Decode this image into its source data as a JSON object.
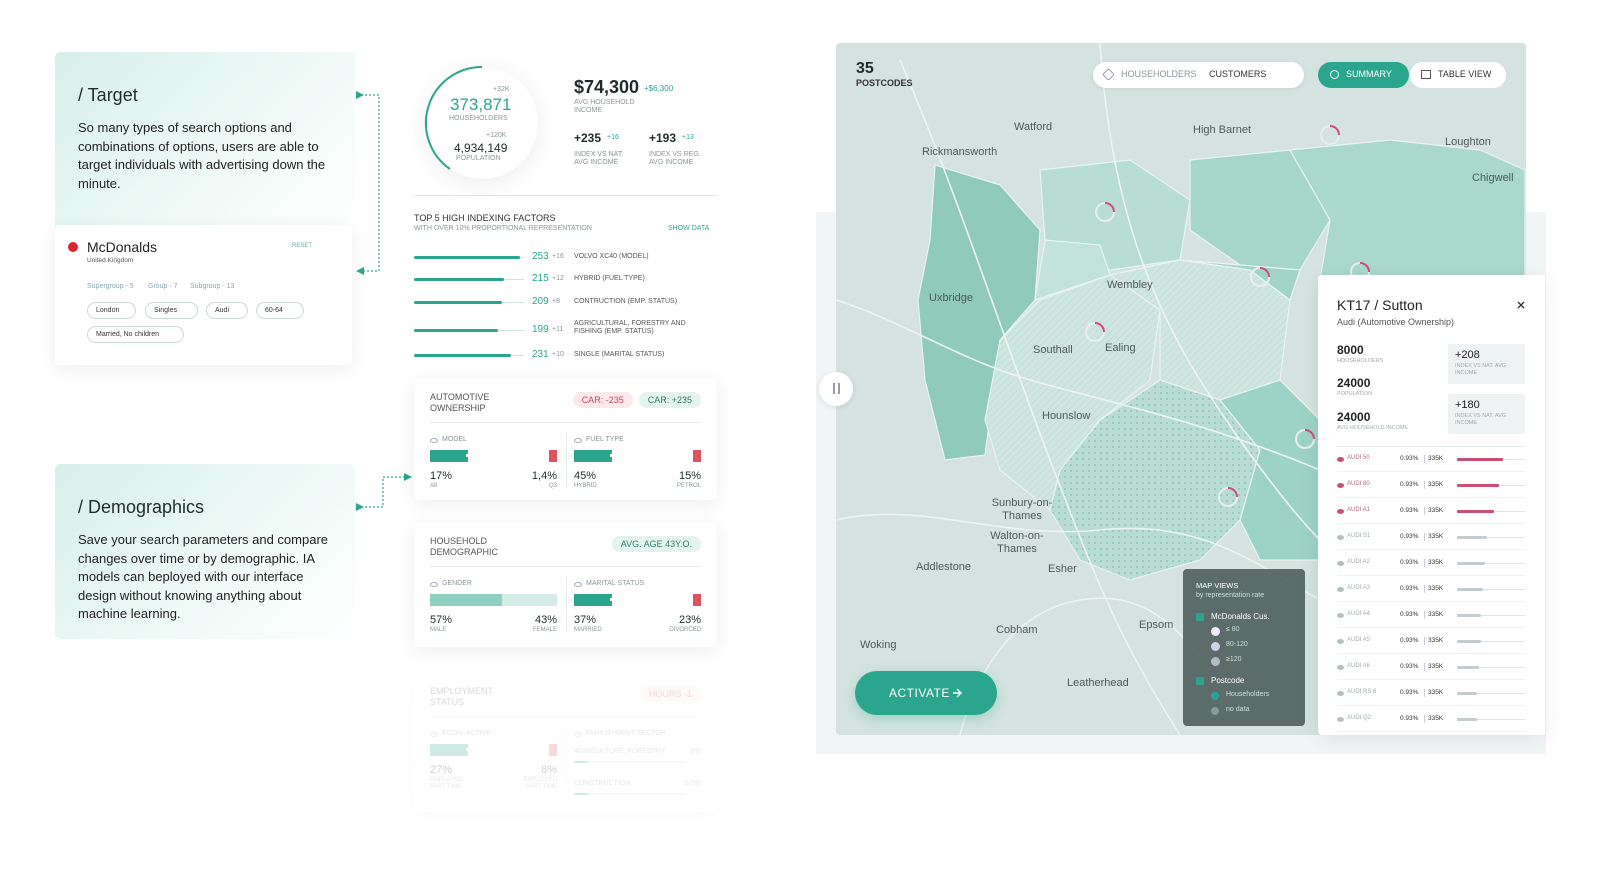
{
  "target": {
    "title": "/ Target",
    "text": "So many types of search options and combinations of options, users are able to target individuals with advertising down the minute."
  },
  "brand": {
    "name": "McDonalds",
    "country": "United Kingdom",
    "reset": "RESET",
    "groups": [
      "Supergroup - 5",
      "Group - 7",
      "Subgroup - 13"
    ],
    "chips": [
      "London",
      "Singles",
      "Audi",
      "60-64",
      "Married, No children"
    ]
  },
  "demographics": {
    "title": "/ Demographics",
    "text": "Save your search parameters and compare changes over time or by demographic. IA models can beployed with our interface design without knowing anything about machine learning."
  },
  "summary": {
    "households": {
      "value": "373,871",
      "delta": "+32K",
      "label": "HOUSEHOLDERS"
    },
    "population": {
      "value": "4,934,149",
      "delta": "+120K",
      "label": "POPULATION"
    },
    "income": {
      "value": "$74,300",
      "delta": "+$6,300",
      "label": "AVG HOUSEHOLD INCOME"
    },
    "indexes": [
      {
        "value": "+235",
        "delta": "+16",
        "label": "INDEX VS NAT. AVG INCOME"
      },
      {
        "value": "+193",
        "delta": "+13",
        "label": "INDEX VS REG. AVG INCOME"
      }
    ]
  },
  "factors": {
    "title": "TOP 5 HIGH INDEXING FACTORS",
    "subtitle": "WITH OVER 10% PROPORTIONAL REPRESENTATION",
    "link": "SHOW DATA",
    "rows": [
      {
        "value": 253,
        "delta": "+16",
        "label": "VOLVO XC40 (MODEL)"
      },
      {
        "value": 215,
        "delta": "+12",
        "label": "HYBRID (FUEL TYPE)"
      },
      {
        "value": 209,
        "delta": "+8",
        "label": "CONTRUCTION (EMP. STATUS)"
      },
      {
        "value": 199,
        "delta": "+11",
        "label": "AGRICULTURAL, FORESTRY AND FISHING (EMP. STATUS)"
      },
      {
        "value": 231,
        "delta": "+10",
        "label": "SINGLE (MARITAL STATUS)"
      }
    ]
  },
  "cards": [
    {
      "title": "AUTOMOTIVE OWNERSHIP",
      "badges": [
        "CAR: -235",
        "CAR: +235"
      ],
      "sections": [
        {
          "title": "MODEL",
          "left": {
            "value": "17%",
            "label": "A8"
          },
          "right": {
            "value": "1,4%",
            "label": "Q3"
          }
        },
        {
          "title": "FUEL TYPE",
          "left": {
            "value": "45%",
            "label": "HYBRID"
          },
          "right": {
            "value": "15%",
            "label": "PETROL"
          }
        }
      ]
    },
    {
      "title": "HOUSEHOLD DEMOGRAPHIC",
      "badges": [
        "AVG. AGE 43Y.O."
      ],
      "sections": [
        {
          "title": "GENDER",
          "left": {
            "value": "57%",
            "label": "MALE"
          },
          "right": {
            "value": "43%",
            "label": "FEMALE"
          }
        },
        {
          "title": "MARITAL STATUS",
          "left": {
            "value": "37%",
            "label": "MARRIED"
          },
          "right": {
            "value": "23%",
            "label": "DIVORCED"
          }
        }
      ]
    },
    {
      "title": "EMPLOYMENT STATUS",
      "badges": [
        "HOURS -1"
      ],
      "sections": [
        {
          "title": "ECON. ACTIVE",
          "left": {
            "value": "27%",
            "label": "EMPLOYED PART TIME"
          },
          "right": {
            "value": "8%",
            "label": "EMPLOYED PART TIME"
          }
        },
        {
          "title": "EMPLOYMENT SECTOR",
          "rows": [
            {
              "label": "AGRICULTURE, FORESTRY",
              "value": "8%"
            },
            {
              "label": "CONSTRUCTION",
              "value": "6.5%"
            }
          ]
        }
      ]
    }
  ],
  "map": {
    "count": "35",
    "count_label": "POSTCODES",
    "toggle": [
      "HOUSEHOLDERS",
      "CUSTOMERS"
    ],
    "views": [
      "SUMMARY",
      "TABLE VIEW"
    ],
    "places": [
      "Watford",
      "High Barnet",
      "Loughton",
      "Rickmansworth",
      "Chigwell",
      "Wembley",
      "Uxbridge",
      "Southall",
      "Ealing",
      "Hounslow",
      "Sunbury-on-Thames",
      "Walton-on-Thames",
      "Addlestone",
      "Esher",
      "Woking",
      "Cobham",
      "Epsom",
      "Leatherhead"
    ],
    "action": "ACTIVATE",
    "legend": {
      "title": "MAP VIEWS",
      "subtitle": "by representation rate",
      "layer1": "McDonalds Cus.",
      "bins": [
        "≤ 80",
        "80-120",
        "≥120"
      ],
      "layer2": "Postcode",
      "items": [
        "Householders",
        "no data"
      ]
    }
  },
  "detail": {
    "title": "KT17 / Sutton",
    "subtitle": "Audi (Automotive Ownership)",
    "stats": [
      {
        "value": "8000",
        "label": "HOUSEHOLDERS"
      },
      {
        "value": "24000",
        "label": "POPULATION"
      },
      {
        "value": "24000",
        "label": "AVG HOUSEHOLD INCOME"
      }
    ],
    "indexes": [
      {
        "value": "+208",
        "label": "INDEX VS NAT. AVG INCOME"
      },
      {
        "value": "+180",
        "label": "INDEX VS NAT. AVG INCOME"
      }
    ],
    "rows": [
      {
        "name": "AUDI 50",
        "share": "0.93%",
        "count": "335K"
      },
      {
        "name": "AUDI 80",
        "share": "0.93%",
        "count": "335K"
      },
      {
        "name": "AUDI A1",
        "share": "0.93%",
        "count": "335K"
      },
      {
        "name": "AUDI S1",
        "share": "0.93%",
        "count": "335K"
      },
      {
        "name": "AUDI A2",
        "share": "0.93%",
        "count": "335K"
      },
      {
        "name": "AUDI A3",
        "share": "0.93%",
        "count": "335K"
      },
      {
        "name": "AUDI A4",
        "share": "0.93%",
        "count": "335K"
      },
      {
        "name": "AUDI A5",
        "share": "0.93%",
        "count": "335K"
      },
      {
        "name": "AUDI A6",
        "share": "0.93%",
        "count": "335K"
      },
      {
        "name": "AUDI RS 6",
        "share": "0.93%",
        "count": "335K"
      },
      {
        "name": "AUDI Q2",
        "share": "0.93%",
        "count": "335K"
      }
    ]
  }
}
